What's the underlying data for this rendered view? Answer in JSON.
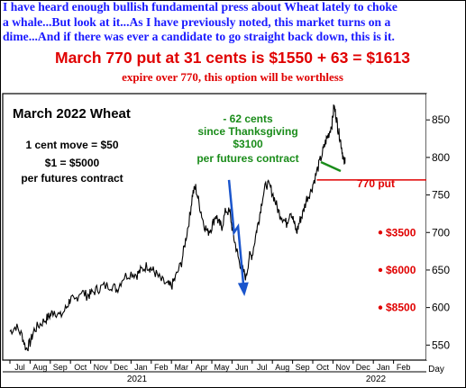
{
  "header": {
    "line1": "I have heard enough bullish fundamental press about Wheat lately to choke",
    "line2": "a whale...But look at it...As I have previously noted, this market turns on a",
    "line3": "dime...And if there was ever a candidate to go straight back down, this is it.",
    "trade": "March 770 put at 31 cents is $1550 + 63 = $1613",
    "expire": "expire over 770, this option will be worthless"
  },
  "chart_data": {
    "type": "line",
    "title": "March 2022 Wheat",
    "notes": [
      "1 cent move = $50",
      "$1 = $5000",
      "per futures contract"
    ],
    "annotation": [
      "- 62 cents",
      "since Thanksgiving",
      "$3100",
      "per futures contract"
    ],
    "put_label": "770 put",
    "put_strike": 770,
    "targets": [
      {
        "label": "$3500",
        "price": 700
      },
      {
        "label": "$6000",
        "price": 650
      },
      {
        "label": "$8500",
        "price": 600
      }
    ],
    "projection": [
      {
        "t": 10.85,
        "price": 770
      },
      {
        "t": 11.1,
        "price": 700
      },
      {
        "t": 11.3,
        "price": 708
      },
      {
        "t": 11.6,
        "price": 620
      }
    ],
    "ylim": [
      530,
      885
    ],
    "yticks": [
      550,
      600,
      650,
      700,
      750,
      800,
      850
    ],
    "xlabels": [
      "Jul",
      "Aug",
      "Sep",
      "Oct",
      "Nov",
      "Dec",
      "Jan",
      "Feb",
      "Mar",
      "Apr",
      "May",
      "Jun",
      "Jul",
      "Aug",
      "Sep",
      "Oct",
      "Nov",
      "Dec",
      "Jan",
      "Feb"
    ],
    "year_labels": [
      "2021",
      "2022"
    ],
    "x_unit_label": "Day",
    "series": [
      {
        "points": [
          [
            0,
            568
          ],
          [
            0.3,
            575
          ],
          [
            0.6,
            563
          ],
          [
            0.8,
            545
          ],
          [
            1.0,
            553
          ],
          [
            1.2,
            570
          ],
          [
            1.5,
            578
          ],
          [
            1.8,
            585
          ],
          [
            2.0,
            590
          ],
          [
            2.2,
            596
          ],
          [
            2.5,
            588
          ],
          [
            2.8,
            600
          ],
          [
            3.0,
            612
          ],
          [
            3.2,
            608
          ],
          [
            3.5,
            622
          ],
          [
            3.8,
            616
          ],
          [
            4.0,
            618
          ],
          [
            4.3,
            624
          ],
          [
            4.6,
            628
          ],
          [
            5.0,
            630
          ],
          [
            5.3,
            624
          ],
          [
            5.6,
            640
          ],
          [
            6.0,
            646
          ],
          [
            6.3,
            644
          ],
          [
            6.5,
            650
          ],
          [
            6.8,
            656
          ],
          [
            7.0,
            652
          ],
          [
            7.2,
            646
          ],
          [
            7.5,
            636
          ],
          [
            7.8,
            630
          ],
          [
            8.0,
            628
          ],
          [
            8.2,
            640
          ],
          [
            8.5,
            660
          ],
          [
            8.7,
            690
          ],
          [
            8.9,
            720
          ],
          [
            9.05,
            752
          ],
          [
            9.2,
            760
          ],
          [
            9.4,
            735
          ],
          [
            9.6,
            712
          ],
          [
            9.8,
            700
          ],
          [
            10.0,
            708
          ],
          [
            10.2,
            724
          ],
          [
            10.35,
            712
          ],
          [
            10.5,
            708
          ],
          [
            10.7,
            730
          ],
          [
            10.9,
            726
          ],
          [
            11.05,
            698
          ],
          [
            11.2,
            680
          ],
          [
            11.35,
            662
          ],
          [
            11.5,
            652
          ],
          [
            11.7,
            640
          ],
          [
            11.85,
            668
          ],
          [
            12.0,
            670
          ],
          [
            12.2,
            700
          ],
          [
            12.35,
            720
          ],
          [
            12.5,
            745
          ],
          [
            12.7,
            765
          ],
          [
            12.9,
            760
          ],
          [
            13.1,
            745
          ],
          [
            13.3,
            728
          ],
          [
            13.5,
            720
          ],
          [
            13.7,
            712
          ],
          [
            13.9,
            730
          ],
          [
            14.05,
            715
          ],
          [
            14.2,
            700
          ],
          [
            14.35,
            715
          ],
          [
            14.5,
            725
          ],
          [
            14.7,
            745
          ],
          [
            14.9,
            755
          ],
          [
            15.1,
            772
          ],
          [
            15.3,
            790
          ],
          [
            15.5,
            808
          ],
          [
            15.65,
            822
          ],
          [
            15.8,
            832
          ],
          [
            15.95,
            845
          ],
          [
            16.05,
            868
          ],
          [
            16.15,
            856
          ],
          [
            16.25,
            838
          ],
          [
            16.35,
            826
          ],
          [
            16.45,
            810
          ],
          [
            16.55,
            792
          ],
          [
            16.6,
            800
          ]
        ]
      }
    ]
  },
  "colors": {
    "blue": "#1a1aff",
    "red": "#e00000",
    "green": "#1a8c1a"
  }
}
